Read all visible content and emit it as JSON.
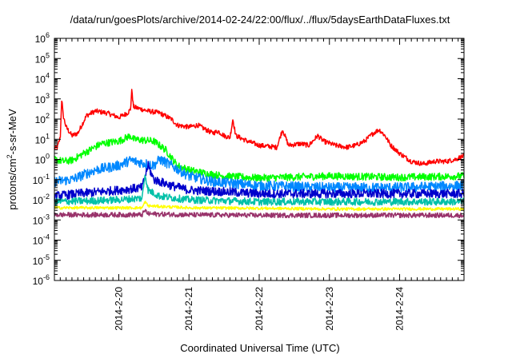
{
  "chart_data": {
    "type": "line",
    "title": "/data/run/goesPlots/archive/2014-02-24/22:00/flux/../flux/5daysEarthDataFluxes.txt",
    "xlabel": "Coordinated Universal Time (UTC)",
    "ylabel": "protons/cm²-s-sr-MeV",
    "ylabel_parts": {
      "pre": "protons/cm",
      "sup": "2",
      "post": "-s-sr-MeV"
    },
    "yscale": "log",
    "ylim": [
      1e-06,
      1000000.0
    ],
    "yticks": [
      {
        "v": -6,
        "label": "10",
        "exp": "-6"
      },
      {
        "v": -5,
        "label": "10",
        "exp": "-5"
      },
      {
        "v": -4,
        "label": "10",
        "exp": "-4"
      },
      {
        "v": -3,
        "label": "10",
        "exp": "-3"
      },
      {
        "v": -2,
        "label": "10",
        "exp": "-2"
      },
      {
        "v": -1,
        "label": "10",
        "exp": "-1"
      },
      {
        "v": 0,
        "label": "10",
        "exp": "0"
      },
      {
        "v": 1,
        "label": "10",
        "exp": "1"
      },
      {
        "v": 2,
        "label": "10",
        "exp": "2"
      },
      {
        "v": 3,
        "label": "10",
        "exp": "3"
      },
      {
        "v": 4,
        "label": "10",
        "exp": "4"
      },
      {
        "v": 5,
        "label": "10",
        "exp": "5"
      },
      {
        "v": 6,
        "label": "10",
        "exp": "6"
      }
    ],
    "xlim": [
      "2014-02-19 02:00",
      "2014-02-24 22:00"
    ],
    "xticks": [
      {
        "t": "2014-02-20 00:00",
        "label": "2014-2-20"
      },
      {
        "t": "2014-02-21 00:00",
        "label": "2014-2-21"
      },
      {
        "t": "2014-02-22 00:00",
        "label": "2014-2-22"
      },
      {
        "t": "2014-02-23 00:00",
        "label": "2014-2-23"
      },
      {
        "t": "2014-02-24 00:00",
        "label": "2014-2-24"
      }
    ],
    "grid": false,
    "series": [
      {
        "color": "#ff0000",
        "noise": 0.12,
        "points": [
          [
            "2014-02-19 02:00",
            3.5
          ],
          [
            "2014-02-19 03:00",
            4
          ],
          [
            "2014-02-19 04:00",
            12
          ],
          [
            "2014-02-19 04:30",
            1000
          ],
          [
            "2014-02-19 05:00",
            150
          ],
          [
            "2014-02-19 06:00",
            40
          ],
          [
            "2014-02-19 08:00",
            15
          ],
          [
            "2014-02-19 10:00",
            20
          ],
          [
            "2014-02-19 13:00",
            150
          ],
          [
            "2014-02-19 16:00",
            250
          ],
          [
            "2014-02-19 20:00",
            200
          ],
          [
            "2014-02-20 00:00",
            120
          ],
          [
            "2014-02-20 03:00",
            200
          ],
          [
            "2014-02-20 04:00",
            300
          ],
          [
            "2014-02-20 04:30",
            3000
          ],
          [
            "2014-02-20 05:00",
            400
          ],
          [
            "2014-02-20 10:00",
            250
          ],
          [
            "2014-02-20 14:00",
            200
          ],
          [
            "2014-02-20 18:00",
            100
          ],
          [
            "2014-02-20 20:00",
            50
          ],
          [
            "2014-02-21 00:00",
            40
          ],
          [
            "2014-02-21 03:00",
            50
          ],
          [
            "2014-02-21 08:00",
            20
          ],
          [
            "2014-02-21 10:00",
            25
          ],
          [
            "2014-02-21 12:00",
            15
          ],
          [
            "2014-02-21 14:00",
            12
          ],
          [
            "2014-02-21 15:00",
            100
          ],
          [
            "2014-02-21 16:00",
            15
          ],
          [
            "2014-02-21 20:00",
            8
          ],
          [
            "2014-02-22 00:00",
            5
          ],
          [
            "2014-02-22 06:00",
            4
          ],
          [
            "2014-02-22 08:00",
            30
          ],
          [
            "2014-02-22 10:00",
            5
          ],
          [
            "2014-02-22 14:00",
            6
          ],
          [
            "2014-02-22 17:00",
            5
          ],
          [
            "2014-02-22 20:00",
            15
          ],
          [
            "2014-02-22 22:00",
            8
          ],
          [
            "2014-02-23 02:00",
            5
          ],
          [
            "2014-02-23 06:00",
            4
          ],
          [
            "2014-02-23 09:00",
            5
          ],
          [
            "2014-02-23 12:00",
            8
          ],
          [
            "2014-02-23 15:00",
            20
          ],
          [
            "2014-02-23 17:00",
            30
          ],
          [
            "2014-02-23 19:00",
            15
          ],
          [
            "2014-02-23 21:00",
            5
          ],
          [
            "2014-02-24 00:00",
            2
          ],
          [
            "2014-02-24 04:00",
            0.8
          ],
          [
            "2014-02-24 08:00",
            0.6
          ],
          [
            "2014-02-24 12:00",
            0.8
          ],
          [
            "2014-02-24 16:00",
            0.8
          ],
          [
            "2014-02-24 19:00",
            1.0
          ],
          [
            "2014-02-24 22:00",
            1.5
          ]
        ]
      },
      {
        "color": "#00ff00",
        "noise": 0.18,
        "points": [
          [
            "2014-02-19 02:00",
            1.0
          ],
          [
            "2014-02-19 05:00",
            0.8
          ],
          [
            "2014-02-19 08:00",
            0.9
          ],
          [
            "2014-02-19 12:00",
            2
          ],
          [
            "2014-02-19 18:00",
            6
          ],
          [
            "2014-02-20 00:00",
            8
          ],
          [
            "2014-02-20 04:00",
            15
          ],
          [
            "2014-02-20 05:00",
            10
          ],
          [
            "2014-02-20 12:00",
            8
          ],
          [
            "2014-02-20 16:00",
            3
          ],
          [
            "2014-02-20 20:00",
            0.5
          ],
          [
            "2014-02-21 00:00",
            0.3
          ],
          [
            "2014-02-21 06:00",
            0.2
          ],
          [
            "2014-02-21 12:00",
            0.15
          ],
          [
            "2014-02-22 00:00",
            0.12
          ],
          [
            "2014-02-23 00:00",
            0.15
          ],
          [
            "2014-02-24 00:00",
            0.13
          ],
          [
            "2014-02-24 22:00",
            0.15
          ]
        ]
      },
      {
        "color": "#0088ff",
        "noise": 0.25,
        "points": [
          [
            "2014-02-19 02:00",
            0.08
          ],
          [
            "2014-02-19 08:00",
            0.1
          ],
          [
            "2014-02-19 16:00",
            0.3
          ],
          [
            "2014-02-20 00:00",
            0.5
          ],
          [
            "2014-02-20 04:00",
            0.9
          ],
          [
            "2014-02-20 12:00",
            0.5
          ],
          [
            "2014-02-20 14:00",
            1.0
          ],
          [
            "2014-02-20 18:00",
            0.5
          ],
          [
            "2014-02-21 00:00",
            0.15
          ],
          [
            "2014-02-21 08:00",
            0.08
          ],
          [
            "2014-02-22 00:00",
            0.05
          ],
          [
            "2014-02-23 00:00",
            0.04
          ],
          [
            "2014-02-24 00:00",
            0.04
          ],
          [
            "2014-02-24 22:00",
            0.05
          ]
        ]
      },
      {
        "color": "#0000cc",
        "noise": 0.22,
        "points": [
          [
            "2014-02-19 02:00",
            0.015
          ],
          [
            "2014-02-19 10:00",
            0.02
          ],
          [
            "2014-02-20 00:00",
            0.03
          ],
          [
            "2014-02-20 08:00",
            0.04
          ],
          [
            "2014-02-20 10:00",
            0.5
          ],
          [
            "2014-02-20 12:00",
            0.1
          ],
          [
            "2014-02-20 18:00",
            0.05
          ],
          [
            "2014-02-21 00:00",
            0.03
          ],
          [
            "2014-02-21 12:00",
            0.025
          ],
          [
            "2014-02-22 00:00",
            0.02
          ],
          [
            "2014-02-23 00:00",
            0.02
          ],
          [
            "2014-02-24 00:00",
            0.02
          ],
          [
            "2014-02-24 22:00",
            0.02
          ]
        ]
      },
      {
        "color": "#00c0a8",
        "noise": 0.18,
        "points": [
          [
            "2014-02-19 02:00",
            0.008
          ],
          [
            "2014-02-19 16:00",
            0.009
          ],
          [
            "2014-02-20 00:00",
            0.01
          ],
          [
            "2014-02-20 08:00",
            0.012
          ],
          [
            "2014-02-20 09:00",
            0.2
          ],
          [
            "2014-02-20 10:00",
            0.03
          ],
          [
            "2014-02-20 14:00",
            0.015
          ],
          [
            "2014-02-21 00:00",
            0.01
          ],
          [
            "2014-02-22 00:00",
            0.008
          ],
          [
            "2014-02-23 00:00",
            0.008
          ],
          [
            "2014-02-24 00:00",
            0.008
          ],
          [
            "2014-02-24 22:00",
            0.008
          ]
        ]
      },
      {
        "color": "#ffff00",
        "noise": 0.07,
        "points": [
          [
            "2014-02-19 02:00",
            0.004
          ],
          [
            "2014-02-20 08:00",
            0.004
          ],
          [
            "2014-02-20 09:00",
            0.008
          ],
          [
            "2014-02-20 10:00",
            0.005
          ],
          [
            "2014-02-21 00:00",
            0.004
          ],
          [
            "2014-02-22 00:00",
            0.0038
          ],
          [
            "2014-02-23 00:00",
            0.0035
          ],
          [
            "2014-02-24 00:00",
            0.0035
          ],
          [
            "2014-02-24 22:00",
            0.0035
          ]
        ]
      },
      {
        "color": "#99336b",
        "noise": 0.12,
        "points": [
          [
            "2014-02-19 02:00",
            0.0018
          ],
          [
            "2014-02-20 08:00",
            0.0018
          ],
          [
            "2014-02-20 09:00",
            0.003
          ],
          [
            "2014-02-20 10:00",
            0.002
          ],
          [
            "2014-02-21 00:00",
            0.0018
          ],
          [
            "2014-02-22 00:00",
            0.0017
          ],
          [
            "2014-02-23 00:00",
            0.0017
          ],
          [
            "2014-02-24 00:00",
            0.0017
          ],
          [
            "2014-02-24 22:00",
            0.0017
          ]
        ]
      }
    ]
  }
}
